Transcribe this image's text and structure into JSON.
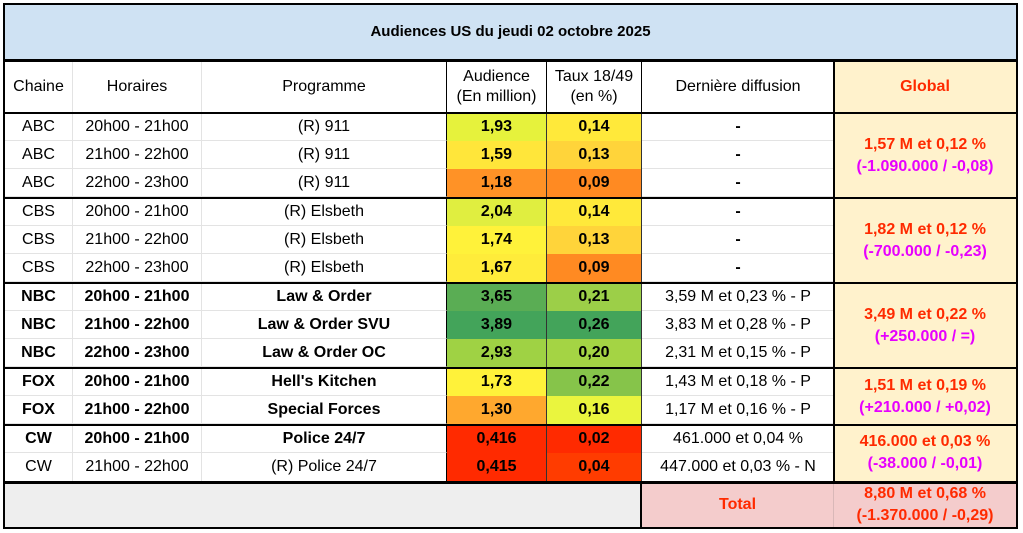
{
  "title": "Audiences US du jeudi 02 octobre 2025",
  "headers": {
    "chaine": "Chaine",
    "horaires": "Horaires",
    "programme": "Programme",
    "audience_l1": "Audience",
    "audience_l2": "(En million)",
    "taux_l1": "Taux 18/49",
    "taux_l2": "(en %)",
    "derniere": "Dernière diffusion",
    "global": "Global"
  },
  "rows": [
    {
      "chaine": "ABC",
      "horaires": "20h00 - 21h00",
      "programme": "(R) 911",
      "audience": "1,93",
      "taux": "0,14",
      "derniere": "-",
      "bold": false,
      "aud_color": "#e6f23c",
      "taux_color": "#ffe93a"
    },
    {
      "chaine": "ABC",
      "horaires": "21h00 - 22h00",
      "programme": "(R) 911",
      "audience": "1,59",
      "taux": "0,13",
      "derniere": "-",
      "bold": false,
      "aud_color": "#ffe63a",
      "taux_color": "#ffd43a"
    },
    {
      "chaine": "ABC",
      "horaires": "22h00 - 23h00",
      "programme": "(R) 911",
      "audience": "1,18",
      "taux": "0,09",
      "derniere": "-",
      "bold": false,
      "aud_color": "#ff9226",
      "taux_color": "#ff8a22"
    },
    {
      "chaine": "CBS",
      "horaires": "20h00 - 21h00",
      "programme": "(R) Elsbeth",
      "audience": "2,04",
      "taux": "0,14",
      "derniere": "-",
      "bold": false,
      "aud_color": "#e0ee40",
      "taux_color": "#ffe93a"
    },
    {
      "chaine": "CBS",
      "horaires": "21h00 - 22h00",
      "programme": "(R) Elsbeth",
      "audience": "1,74",
      "taux": "0,13",
      "derniere": "-",
      "bold": false,
      "aud_color": "#fff23a",
      "taux_color": "#ffd43a"
    },
    {
      "chaine": "CBS",
      "horaires": "22h00 - 23h00",
      "programme": "(R) Elsbeth",
      "audience": "1,67",
      "taux": "0,09",
      "derniere": "-",
      "bold": false,
      "aud_color": "#ffec3a",
      "taux_color": "#ff8a22"
    },
    {
      "chaine": "NBC",
      "horaires": "20h00 - 21h00",
      "programme": "Law & Order",
      "audience": "3,65",
      "taux": "0,21",
      "derniere": "3,59 M et 0,23 % - P",
      "bold": true,
      "aud_color": "#5aad54",
      "taux_color": "#9ccf48"
    },
    {
      "chaine": "NBC",
      "horaires": "21h00 - 22h00",
      "programme": "Law & Order SVU",
      "audience": "3,89",
      "taux": "0,26",
      "derniere": "3,83 M et 0,28 % - P",
      "bold": true,
      "aud_color": "#43a45a",
      "taux_color": "#43a45a"
    },
    {
      "chaine": "NBC",
      "horaires": "22h00 - 23h00",
      "programme": "Law & Order OC",
      "audience": "2,93",
      "taux": "0,20",
      "derniere": "2,31 M et 0,15 % - P",
      "bold": true,
      "aud_color": "#9fd244",
      "taux_color": "#a4d444"
    },
    {
      "chaine": "FOX",
      "horaires": "20h00 - 21h00",
      "programme": "Hell's Kitchen",
      "audience": "1,73",
      "taux": "0,22",
      "derniere": "1,43 M et 0,18 % - P",
      "bold": true,
      "aud_color": "#fff23a",
      "taux_color": "#86c44a"
    },
    {
      "chaine": "FOX",
      "horaires": "21h00 - 22h00",
      "programme": "Special Forces",
      "audience": "1,30",
      "taux": "0,16",
      "derniere": "1,17 M et 0,16 % - P",
      "bold": true,
      "aud_color": "#ffa82e",
      "taux_color": "#eaf53e"
    },
    {
      "chaine": "CW",
      "horaires": "20h00 - 21h00",
      "programme": "Police 24/7",
      "audience": "0,416",
      "taux": "0,02",
      "derniere": "461.000 et 0,04 %",
      "bold": true,
      "aud_color": "#ff2a00",
      "taux_color": "#ff2a00"
    },
    {
      "chaine": "CW",
      "horaires": "21h00 - 22h00",
      "programme": "(R) Police 24/7",
      "audience": "0,415",
      "taux": "0,04",
      "derniere": "447.000 et 0,03 % - N",
      "bold": false,
      "aud_color": "#ff2a00",
      "taux_color": "#ff3c00"
    }
  ],
  "globals": [
    {
      "main": "1,57 M et 0,12 %",
      "delta": "(-1.090.000 / -0,08)"
    },
    {
      "main": "1,82 M et 0,12 %",
      "delta": "(-700.000 / -0,23)"
    },
    {
      "main": "3,49 M et 0,22 %",
      "delta": "(+250.000 / =)"
    },
    {
      "main": "1,51 M et 0,19 %",
      "delta": "(+210.000 / +0,02)"
    },
    {
      "main": "416.000 et 0,03 %",
      "delta": "(-38.000 / -0,01)"
    }
  ],
  "total": {
    "label": "Total",
    "main": "8,80 M et 0,68 %",
    "delta": "(-1.370.000 / -0,29)"
  },
  "colors": {
    "title_bg": "#cfe2f3",
    "global_bg": "#fff2cc",
    "total_bg": "#f4cccc",
    "empty_bg": "#eeeeee",
    "global_main": "#ff2a00",
    "global_delta": "#e600ff"
  }
}
